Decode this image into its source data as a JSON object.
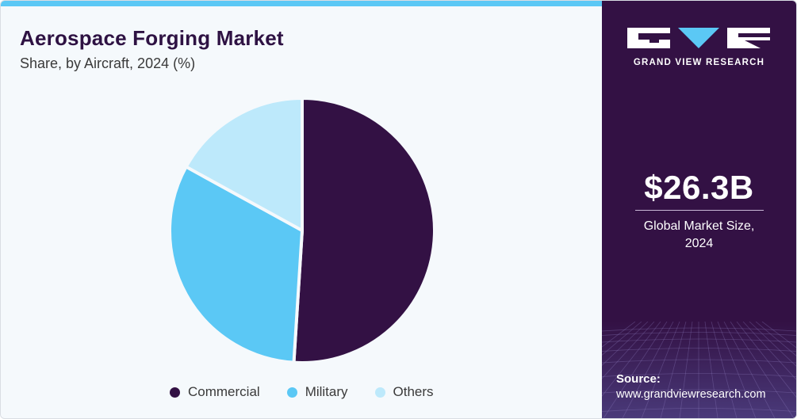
{
  "header": {
    "title": "Aerospace Forging Market",
    "subtitle": "Share, by Aircraft, 2024 (%)"
  },
  "chart_data": {
    "type": "pie",
    "title": "Aerospace Forging Market",
    "subtitle": "Share, by Aircraft, 2024 (%)",
    "categories": [
      "Commercial",
      "Military",
      "Others"
    ],
    "values": [
      51,
      32,
      17
    ],
    "colors": [
      "#331144",
      "#5bc8f5",
      "#bde9fb"
    ],
    "legend_position": "bottom"
  },
  "sidebar": {
    "brand": "GRAND VIEW RESEARCH",
    "market_size_value": "$26.3B",
    "market_size_caption_line1": "Global Market Size,",
    "market_size_caption_line2": "2024",
    "source_label": "Source:",
    "source_url": "www.grandviewresearch.com",
    "panel_color": "#331144",
    "accent_color": "#5bc8f5"
  }
}
